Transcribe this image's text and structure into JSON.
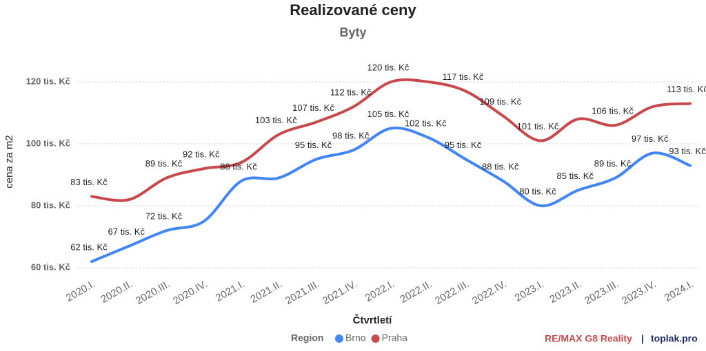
{
  "chart_data": {
    "type": "line",
    "title": "Realizované ceny",
    "subtitle": "Byty",
    "x_label": "Čtvrtletí",
    "y_label": "cena za m2",
    "legend_title": "Region",
    "legend_position": "bottom",
    "grid": true,
    "categories": [
      "2020.I.",
      "2020.II.",
      "2020.III.",
      "2020.IV.",
      "2021.I.",
      "2021.II.",
      "2021.III.",
      "2021.IV.",
      "2022.I.",
      "2022.II.",
      "2022.III.",
      "2022.IV.",
      "2023.I.",
      "2023.II.",
      "2023.III.",
      "2023.IV.",
      "2024.I."
    ],
    "series": [
      {
        "name": "Brno",
        "color": "#4285f4",
        "values": [
          62,
          67,
          72,
          75,
          88,
          89,
          95,
          98,
          105,
          102,
          95,
          88,
          80,
          85,
          89,
          97,
          93
        ],
        "value_labels": [
          "62 tis. Kč",
          "67 tis. Kč",
          "72 tis. Kč",
          null,
          "88 tis. Kč",
          null,
          "95 tis. Kč",
          "98 tis. Kč",
          "105 tis. Kč",
          "102 tis. Kč",
          "95 tis. Kč",
          "88 tis. Kč",
          "80 tis. Kč",
          "85 tis. Kč",
          "89 tis. Kč",
          "97 tis. Kč",
          "93 tis. Kč"
        ]
      },
      {
        "name": "Praha",
        "color": "#c8494c",
        "values": [
          83,
          82,
          89,
          92,
          94,
          103,
          107,
          112,
          120,
          120,
          117,
          109,
          101,
          108,
          106,
          112,
          113
        ],
        "value_labels": [
          "83 tis. Kč",
          null,
          "89 tis. Kč",
          "92 tis. Kč",
          null,
          "103 tis. Kč",
          "107 tis. Kč",
          "112 tis. Kč",
          "120 tis. Kč",
          null,
          "117 tis. Kč",
          "109 tis. Kč",
          "101 tis. Kč",
          null,
          "106 tis. Kč",
          null,
          "113 tis. Kč"
        ]
      }
    ],
    "ylim": [
      58,
      124
    ],
    "yticks": [
      {
        "value": 60,
        "label": "60 tis. Kč"
      },
      {
        "value": 80,
        "label": "80 tis. Kč"
      },
      {
        "value": 100,
        "label": "100 tis. Kč"
      },
      {
        "value": 120,
        "label": "120 tis. Kč"
      }
    ],
    "brand": "RE/MAX G8 Reality",
    "separator": "|",
    "site": "toplak.pro"
  }
}
